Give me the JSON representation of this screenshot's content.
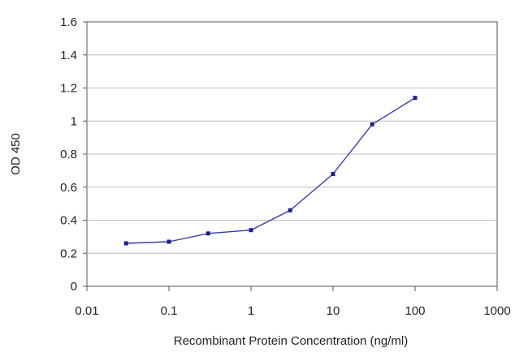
{
  "chart_data": {
    "type": "line",
    "title": "",
    "xlabel": "Recombinant Protein Concentration (ng/ml)",
    "ylabel": "OD 450",
    "x_scale": "log",
    "xlim": [
      0.01,
      1000
    ],
    "ylim": [
      0,
      1.6
    ],
    "x_ticks": [
      0.01,
      0.1,
      1,
      10,
      100,
      1000
    ],
    "x_tick_labels": [
      "0.01",
      "0.1",
      "1",
      "10",
      "100",
      "1000"
    ],
    "y_ticks": [
      0,
      0.2,
      0.4,
      0.6,
      0.8,
      1,
      1.2,
      1.4,
      1.6
    ],
    "y_tick_labels": [
      "0",
      "0.2",
      "0.4",
      "0.6",
      "0.8",
      "1",
      "1.2",
      "1.4",
      "1.6"
    ],
    "grid": "horizontal",
    "legend": "none",
    "series": [
      {
        "x": [
          0.03,
          0.1,
          0.3,
          1,
          3,
          10,
          30,
          100
        ],
        "y": [
          0.26,
          0.27,
          0.32,
          0.34,
          0.46,
          0.68,
          0.98,
          1.14
        ]
      }
    ],
    "colors": {
      "series": "#3a3aa8",
      "marker": "#1e1e8c",
      "grid": "#bdbdbd",
      "axis": "#555555",
      "plot_background": "#ffffff"
    }
  }
}
